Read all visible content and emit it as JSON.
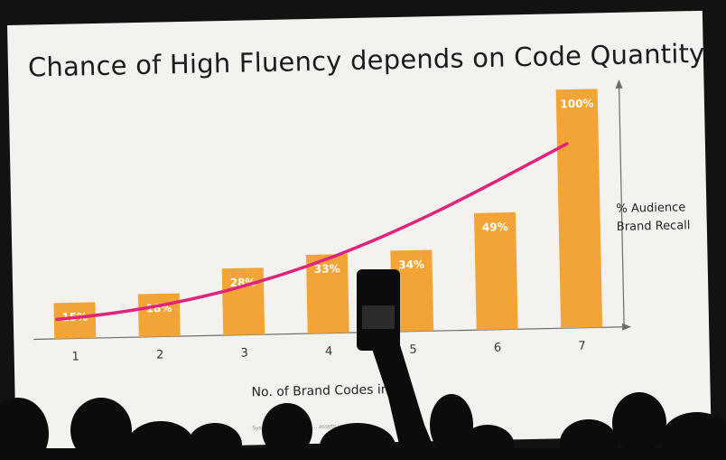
{
  "slide": {
    "footnote": "System ... se, 500 Ud ... assets used."
  },
  "chart_data": {
    "type": "bar",
    "title": "Chance of High Fluency depends on Code Quantity",
    "xlabel": "No. of Brand Codes in Ad",
    "ylabel": "% Audience Brand Recall",
    "categories": [
      "1",
      "2",
      "3",
      "4",
      "5",
      "6",
      "7"
    ],
    "values": [
      15,
      18,
      28,
      33,
      34,
      49,
      100
    ],
    "data_labels": [
      "15%",
      "18%",
      "28%",
      "33%",
      "34%",
      "49%",
      "100%"
    ],
    "ylim": [
      0,
      100
    ],
    "bar_color": "#f2a536",
    "trend_color": "#e0247d",
    "grid": false,
    "legend": "none"
  }
}
